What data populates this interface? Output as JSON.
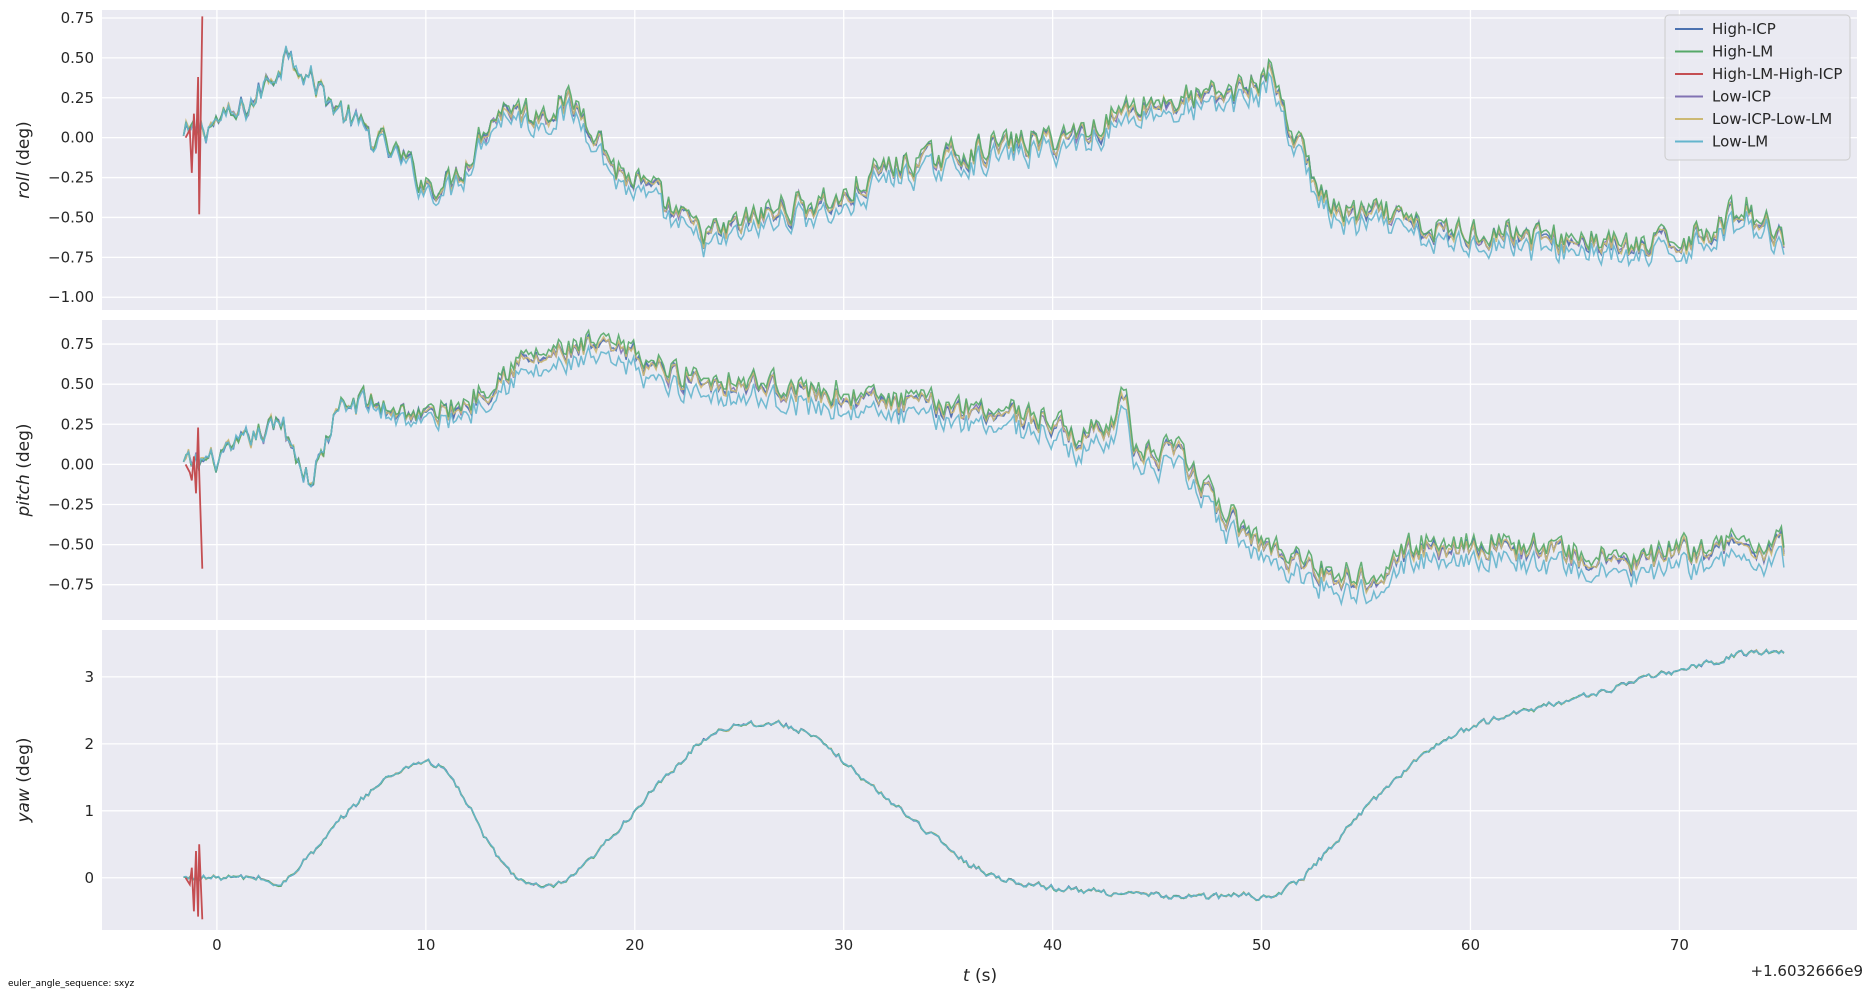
{
  "footnote": "euler_angle_sequence: sxyz",
  "chart_data": {
    "type": "line",
    "shared_x": {
      "label_italic": "t",
      "label_rest": " (s)",
      "ticks": [
        0,
        10,
        20,
        30,
        40,
        50,
        60,
        70
      ],
      "tick_labels": [
        "0",
        "10",
        "20",
        "30",
        "40",
        "50",
        "60",
        "70"
      ],
      "xlim": [
        -5.5,
        78.5
      ],
      "offset_text": "+1.6032666e9",
      "grid": true
    },
    "legend": {
      "placement": "top-right of first panel",
      "entries": [
        {
          "name": "High-ICP",
          "color": "#4c72b0"
        },
        {
          "name": "High-LM",
          "color": "#55a868"
        },
        {
          "name": "High-LM-High-ICP",
          "color": "#c44e52"
        },
        {
          "name": "Low-ICP",
          "color": "#8172b3"
        },
        {
          "name": "Low-ICP-Low-LM",
          "color": "#ccb974"
        },
        {
          "name": "Low-LM",
          "color": "#64b5cd"
        }
      ]
    },
    "panels": [
      {
        "key": "roll",
        "ylabel_italic": "roll",
        "ylabel_rest": " (deg)",
        "ylim": [
          -1.08,
          0.8
        ],
        "yticks": [
          0.75,
          0.5,
          0.25,
          0.0,
          -0.25,
          -0.5,
          -0.75,
          -1.0
        ],
        "ytick_labels": [
          "0.75",
          "0.50",
          "0.25",
          "0.00",
          "−0.25",
          "−0.50",
          "−0.75",
          "−1.00"
        ],
        "trend": [
          [
            -1.6,
            0.0
          ],
          [
            0,
            0.1
          ],
          [
            1,
            0.14
          ],
          [
            2,
            0.27
          ],
          [
            3,
            0.45
          ],
          [
            3.5,
            0.57
          ],
          [
            4.2,
            0.4
          ],
          [
            5,
            0.3
          ],
          [
            6,
            0.15
          ],
          [
            7,
            0.05
          ],
          [
            8,
            -0.05
          ],
          [
            9,
            -0.15
          ],
          [
            10,
            -0.3
          ],
          [
            11,
            -0.3
          ],
          [
            12,
            -0.15
          ],
          [
            13,
            0.1
          ],
          [
            14,
            0.2
          ],
          [
            15,
            0.13
          ],
          [
            16,
            0.18
          ],
          [
            17,
            0.2
          ],
          [
            18,
            0.08
          ],
          [
            19,
            -0.2
          ],
          [
            20,
            -0.28
          ],
          [
            21,
            -0.37
          ],
          [
            22,
            -0.5
          ],
          [
            23,
            -0.58
          ],
          [
            24,
            -0.62
          ],
          [
            25,
            -0.55
          ],
          [
            26,
            -0.5
          ],
          [
            28,
            -0.43
          ],
          [
            30,
            -0.4
          ],
          [
            32,
            -0.2
          ],
          [
            34,
            -0.15
          ],
          [
            36,
            -0.1
          ],
          [
            38,
            -0.05
          ],
          [
            40,
            -0.02
          ],
          [
            42,
            0.05
          ],
          [
            44,
            0.2
          ],
          [
            46,
            0.22
          ],
          [
            48,
            0.25
          ],
          [
            50,
            0.35
          ],
          [
            50.5,
            0.45
          ],
          [
            51,
            0.15
          ],
          [
            52,
            -0.1
          ],
          [
            53,
            -0.4
          ],
          [
            54,
            -0.5
          ],
          [
            56,
            -0.5
          ],
          [
            58,
            -0.6
          ],
          [
            60,
            -0.6
          ],
          [
            62,
            -0.6
          ],
          [
            64,
            -0.65
          ],
          [
            66,
            -0.65
          ],
          [
            68,
            -0.72
          ],
          [
            70,
            -0.65
          ],
          [
            72,
            -0.55
          ],
          [
            73,
            -0.45
          ],
          [
            75,
            -0.6
          ]
        ],
        "noise": 0.08,
        "low_lm_bias": -0.06,
        "spike": {
          "t": [
            -1.5,
            -1.3,
            -1.2,
            -1.1,
            -1.0,
            -0.9,
            -0.85,
            -0.7
          ],
          "y": [
            0.0,
            0.05,
            -0.22,
            0.15,
            -0.1,
            0.38,
            -0.48,
            0.76
          ]
        }
      },
      {
        "key": "pitch",
        "ylabel_italic": "pitch",
        "ylabel_rest": " (deg)",
        "ylim": [
          -0.97,
          0.9
        ],
        "yticks": [
          0.75,
          0.5,
          0.25,
          0.0,
          -0.25,
          -0.5,
          -0.75
        ],
        "ytick_labels": [
          "0.75",
          "0.50",
          "0.25",
          "0.00",
          "−0.25",
          "−0.50",
          "−0.75"
        ],
        "trend": [
          [
            -1.6,
            0.0
          ],
          [
            -0.5,
            0.02
          ],
          [
            0.5,
            0.05
          ],
          [
            1.5,
            0.15
          ],
          [
            2.5,
            0.22
          ],
          [
            3.2,
            0.25
          ],
          [
            4,
            0.0
          ],
          [
            4.5,
            -0.1
          ],
          [
            5,
            0.05
          ],
          [
            5.5,
            0.25
          ],
          [
            6,
            0.35
          ],
          [
            7,
            0.4
          ],
          [
            8,
            0.35
          ],
          [
            9,
            0.33
          ],
          [
            10,
            0.3
          ],
          [
            11,
            0.33
          ],
          [
            12,
            0.38
          ],
          [
            13,
            0.48
          ],
          [
            14,
            0.6
          ],
          [
            15,
            0.65
          ],
          [
            16,
            0.67
          ],
          [
            17,
            0.7
          ],
          [
            18,
            0.72
          ],
          [
            19,
            0.7
          ],
          [
            20,
            0.67
          ],
          [
            21,
            0.6
          ],
          [
            22,
            0.55
          ],
          [
            24,
            0.52
          ],
          [
            26,
            0.5
          ],
          [
            28,
            0.45
          ],
          [
            30,
            0.42
          ],
          [
            32,
            0.38
          ],
          [
            34,
            0.36
          ],
          [
            36,
            0.35
          ],
          [
            38,
            0.32
          ],
          [
            40,
            0.25
          ],
          [
            41,
            0.15
          ],
          [
            42,
            0.2
          ],
          [
            43,
            0.3
          ],
          [
            43.5,
            0.4
          ],
          [
            44,
            0.05
          ],
          [
            45,
            0.05
          ],
          [
            46,
            0.05
          ],
          [
            47,
            -0.1
          ],
          [
            48,
            -0.3
          ],
          [
            49,
            -0.4
          ],
          [
            50,
            -0.5
          ],
          [
            51,
            -0.55
          ],
          [
            52,
            -0.62
          ],
          [
            53,
            -0.68
          ],
          [
            55,
            -0.72
          ],
          [
            56,
            -0.62
          ],
          [
            57,
            -0.55
          ],
          [
            58,
            -0.52
          ],
          [
            60,
            -0.5
          ],
          [
            62,
            -0.52
          ],
          [
            64,
            -0.55
          ],
          [
            66,
            -0.6
          ],
          [
            68,
            -0.62
          ],
          [
            70,
            -0.55
          ],
          [
            72,
            -0.52
          ],
          [
            75,
            -0.52
          ]
        ],
        "noise": 0.07,
        "low_lm_bias": -0.08,
        "spike": {
          "t": [
            -1.5,
            -1.3,
            -1.2,
            -1.1,
            -1.0,
            -0.9,
            -0.85,
            -0.7
          ],
          "y": [
            0.0,
            -0.05,
            -0.1,
            0.05,
            -0.18,
            0.23,
            -0.05,
            -0.65
          ]
        }
      },
      {
        "key": "yaw",
        "ylabel_italic": "yaw",
        "ylabel_rest": " (deg)",
        "ylim": [
          -0.78,
          3.7
        ],
        "yticks": [
          3,
          2,
          1,
          0
        ],
        "ytick_labels": [
          "3",
          "2",
          "1",
          "0"
        ],
        "trend": [
          [
            -1.6,
            0.0
          ],
          [
            0,
            0.0
          ],
          [
            2,
            0.0
          ],
          [
            2.5,
            -0.05
          ],
          [
            3,
            -0.15
          ],
          [
            4,
            0.2
          ],
          [
            5,
            0.5
          ],
          [
            6,
            0.9
          ],
          [
            7,
            1.2
          ],
          [
            8,
            1.45
          ],
          [
            9,
            1.65
          ],
          [
            10,
            1.75
          ],
          [
            11,
            1.6
          ],
          [
            12,
            1.1
          ],
          [
            13,
            0.5
          ],
          [
            14,
            0.1
          ],
          [
            15,
            -0.12
          ],
          [
            16,
            -0.15
          ],
          [
            17,
            0.0
          ],
          [
            18,
            0.3
          ],
          [
            19,
            0.65
          ],
          [
            20,
            1.0
          ],
          [
            21,
            1.35
          ],
          [
            22,
            1.65
          ],
          [
            23,
            2.0
          ],
          [
            24,
            2.2
          ],
          [
            25,
            2.3
          ],
          [
            26,
            2.3
          ],
          [
            27,
            2.3
          ],
          [
            28,
            2.2
          ],
          [
            29,
            2.0
          ],
          [
            30,
            1.75
          ],
          [
            31,
            1.45
          ],
          [
            32,
            1.2
          ],
          [
            33,
            0.95
          ],
          [
            34,
            0.7
          ],
          [
            35,
            0.45
          ],
          [
            36,
            0.2
          ],
          [
            37,
            0.05
          ],
          [
            38,
            -0.05
          ],
          [
            40,
            -0.15
          ],
          [
            42,
            -0.2
          ],
          [
            44,
            -0.25
          ],
          [
            46,
            -0.28
          ],
          [
            48,
            -0.28
          ],
          [
            49,
            -0.25
          ],
          [
            50,
            -0.3
          ],
          [
            51,
            -0.2
          ],
          [
            52,
            0.0
          ],
          [
            53,
            0.35
          ],
          [
            54,
            0.7
          ],
          [
            55,
            1.05
          ],
          [
            56,
            1.35
          ],
          [
            57,
            1.65
          ],
          [
            58,
            1.9
          ],
          [
            59,
            2.1
          ],
          [
            60,
            2.25
          ],
          [
            62,
            2.45
          ],
          [
            64,
            2.6
          ],
          [
            66,
            2.75
          ],
          [
            68,
            2.95
          ],
          [
            70,
            3.1
          ],
          [
            72,
            3.25
          ],
          [
            73,
            3.35
          ],
          [
            75,
            3.4
          ]
        ],
        "noise": 0.04,
        "low_lm_bias": 0.0,
        "spike": {
          "t": [
            -1.5,
            -1.3,
            -1.2,
            -1.1,
            -1.0,
            -0.9,
            -0.85,
            -0.7
          ],
          "y": [
            0.0,
            -0.1,
            0.15,
            -0.5,
            0.4,
            -0.58,
            0.5,
            -0.62
          ]
        }
      }
    ]
  }
}
